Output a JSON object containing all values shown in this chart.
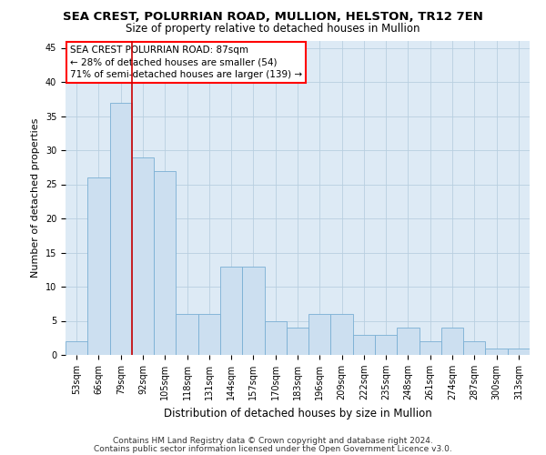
{
  "title": "SEA CREST, POLURRIAN ROAD, MULLION, HELSTON, TR12 7EN",
  "subtitle": "Size of property relative to detached houses in Mullion",
  "xlabel": "Distribution of detached houses by size in Mullion",
  "ylabel": "Number of detached properties",
  "bins": [
    "53sqm",
    "66sqm",
    "79sqm",
    "92sqm",
    "105sqm",
    "118sqm",
    "131sqm",
    "144sqm",
    "157sqm",
    "170sqm",
    "183sqm",
    "196sqm",
    "209sqm",
    "222sqm",
    "235sqm",
    "248sqm",
    "261sqm",
    "274sqm",
    "287sqm",
    "300sqm",
    "313sqm"
  ],
  "values": [
    2,
    26,
    37,
    29,
    27,
    6,
    6,
    13,
    13,
    5,
    4,
    6,
    6,
    3,
    3,
    4,
    2,
    4,
    2,
    1,
    1
  ],
  "bar_color": "#ccdff0",
  "bar_edge_color": "#7aafd4",
  "vline_x_index": 2.5,
  "vline_color": "#cc0000",
  "annotation_box_text": "SEA CREST POLURRIAN ROAD: 87sqm\n← 28% of detached houses are smaller (54)\n71% of semi-detached houses are larger (139) →",
  "ylim": [
    0,
    46
  ],
  "yticks": [
    0,
    5,
    10,
    15,
    20,
    25,
    30,
    35,
    40,
    45
  ],
  "grid_color": "#b8cfe0",
  "bg_color": "#ddeaf5",
  "footer_line1": "Contains HM Land Registry data © Crown copyright and database right 2024.",
  "footer_line2": "Contains public sector information licensed under the Open Government Licence v3.0.",
  "title_fontsize": 9.5,
  "subtitle_fontsize": 8.5,
  "tick_fontsize": 7,
  "ylabel_fontsize": 8,
  "xlabel_fontsize": 8.5,
  "annotation_fontsize": 7.5,
  "footer_fontsize": 6.5
}
